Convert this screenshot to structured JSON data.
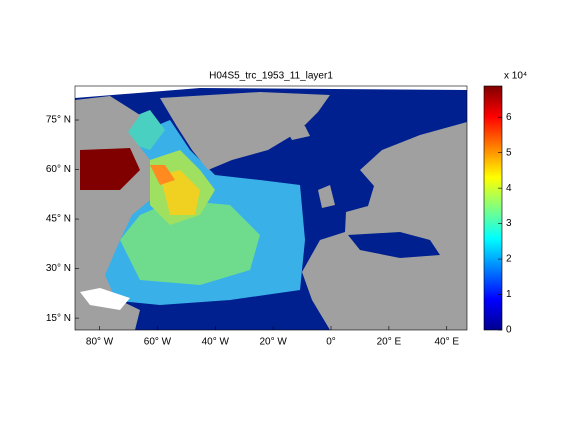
{
  "title": "H04S5_trc_1953_11_layer1",
  "map": {
    "xlim": [
      -88.5,
      47
    ],
    "ylim": [
      11.4,
      85.3
    ],
    "xticks": [
      {
        "value": -80,
        "label": "80° W"
      },
      {
        "value": -60,
        "label": "60° W"
      },
      {
        "value": -40,
        "label": "40° W"
      },
      {
        "value": -20,
        "label": "20° W"
      },
      {
        "value": 0,
        "label": "0°"
      },
      {
        "value": 20,
        "label": "20° E"
      },
      {
        "value": 40,
        "label": "40° E"
      }
    ],
    "yticks": [
      {
        "value": 15,
        "label": "15° N"
      },
      {
        "value": 30,
        "label": "30° N"
      },
      {
        "value": 45,
        "label": "45° N"
      },
      {
        "value": 60,
        "label": "60° N"
      },
      {
        "value": 75,
        "label": "75° N"
      }
    ]
  },
  "colorbar": {
    "clim": [
      0,
      6.88
    ],
    "ticks": [
      0,
      1,
      2,
      3,
      4,
      5,
      6
    ],
    "multiplier": "x 10⁴"
  }
}
